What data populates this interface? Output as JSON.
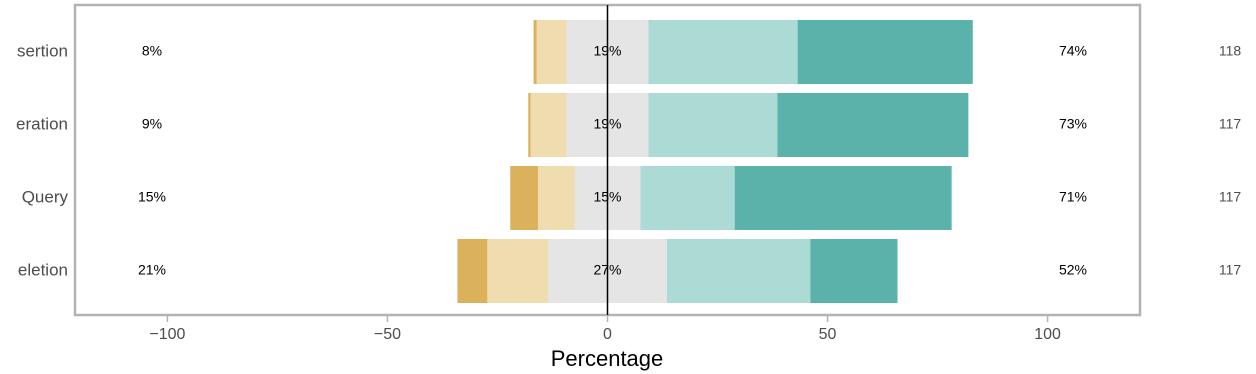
{
  "chart_data": {
    "type": "diverging_bar",
    "x_label": "Percentage",
    "categories": [
      "sertion",
      "eration",
      "Query",
      "eletion"
    ],
    "center_series": 2,
    "series": [
      {
        "color": "#dcb15c",
        "values": [
          0.7,
          0.5,
          6.3,
          6.8
        ]
      },
      {
        "color": "#efdcaf",
        "values": [
          6.8,
          8.2,
          8.3,
          13.8
        ]
      },
      {
        "color": "#e5e5e5",
        "values": [
          18.6,
          18.6,
          15,
          27
        ]
      },
      {
        "color": "#acdad5",
        "values": [
          33.9,
          29.3,
          21.4,
          32.6
        ]
      },
      {
        "color": "#5ab2aa",
        "values": [
          39.8,
          43.4,
          49.3,
          19.8
        ]
      }
    ],
    "left_totals": {
      "values": [
        8,
        9,
        15,
        21
      ],
      "value_labels": [
        "8%",
        "9%",
        "15%",
        "21%"
      ]
    },
    "center_totals": {
      "values": [
        19,
        19,
        15,
        27
      ],
      "value_labels": [
        "19%",
        "19%",
        "15%",
        "27%"
      ]
    },
    "right_totals": {
      "values": [
        74,
        73,
        71,
        52
      ],
      "value_labels": [
        "74%",
        "73%",
        "71%",
        "52%"
      ]
    },
    "counts": [
      118,
      117,
      117,
      117
    ],
    "xlim": [
      -121,
      121
    ],
    "xticks": [
      {
        "value": -100,
        "label": "−100"
      },
      {
        "value": -50,
        "label": "−50"
      },
      0,
      50,
      100
    ]
  }
}
